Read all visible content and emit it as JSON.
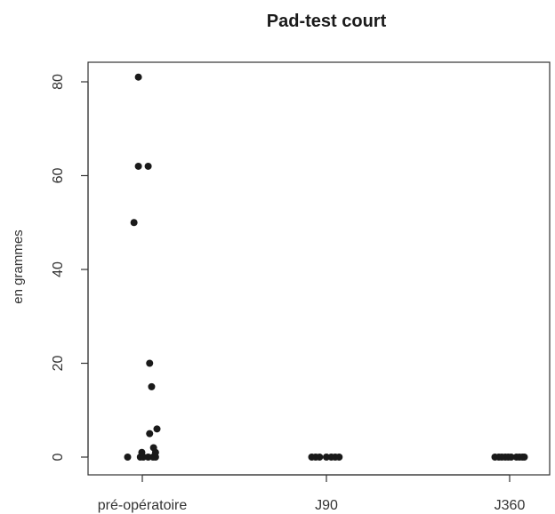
{
  "chart_data": {
    "type": "scatter",
    "title": "Pad-test court",
    "xlabel": "",
    "ylabel": "en grammes",
    "categories": [
      "pré-opératoire",
      "J90",
      "J360"
    ],
    "ylim": [
      0,
      84
    ],
    "yticks": [
      0,
      20,
      40,
      60,
      80
    ],
    "grid": false,
    "points": [
      {
        "category": "pré-opératoire",
        "jitter": -0.3,
        "value": 0
      },
      {
        "category": "pré-opératoire",
        "jitter": -0.17,
        "value": 50
      },
      {
        "category": "pré-opératoire",
        "jitter": -0.08,
        "value": 81
      },
      {
        "category": "pré-opératoire",
        "jitter": -0.08,
        "value": 62
      },
      {
        "category": "pré-opératoire",
        "jitter": 0.12,
        "value": 62
      },
      {
        "category": "pré-opératoire",
        "jitter": -0.04,
        "value": 0
      },
      {
        "category": "pré-opératoire",
        "jitter": -0.01,
        "value": 1
      },
      {
        "category": "pré-opératoire",
        "jitter": 0.02,
        "value": 0
      },
      {
        "category": "pré-opératoire",
        "jitter": 0.12,
        "value": 0
      },
      {
        "category": "pré-opératoire",
        "jitter": 0.15,
        "value": 20
      },
      {
        "category": "pré-opératoire",
        "jitter": 0.19,
        "value": 15
      },
      {
        "category": "pré-opératoire",
        "jitter": 0.15,
        "value": 5
      },
      {
        "category": "pré-opératoire",
        "jitter": 0.22,
        "value": 0
      },
      {
        "category": "pré-opératoire",
        "jitter": 0.23,
        "value": 2
      },
      {
        "category": "pré-opératoire",
        "jitter": 0.27,
        "value": 1
      },
      {
        "category": "pré-opératoire",
        "jitter": 0.3,
        "value": 6
      },
      {
        "category": "pré-opératoire",
        "jitter": 0.27,
        "value": 0
      },
      {
        "category": "J90",
        "jitter": -0.3,
        "value": 0
      },
      {
        "category": "J90",
        "jitter": -0.22,
        "value": 0
      },
      {
        "category": "J90",
        "jitter": -0.14,
        "value": 0
      },
      {
        "category": "J90",
        "jitter": 0.0,
        "value": 0
      },
      {
        "category": "J90",
        "jitter": 0.1,
        "value": 0
      },
      {
        "category": "J90",
        "jitter": 0.18,
        "value": 0
      },
      {
        "category": "J90",
        "jitter": 0.26,
        "value": 0
      },
      {
        "category": "J360",
        "jitter": -0.3,
        "value": 0
      },
      {
        "category": "J360",
        "jitter": -0.22,
        "value": 0
      },
      {
        "category": "J360",
        "jitter": -0.16,
        "value": 0
      },
      {
        "category": "J360",
        "jitter": -0.09,
        "value": 0
      },
      {
        "category": "J360",
        "jitter": -0.03,
        "value": 0
      },
      {
        "category": "J360",
        "jitter": 0.03,
        "value": 0
      },
      {
        "category": "J360",
        "jitter": 0.14,
        "value": 0
      },
      {
        "category": "J360",
        "jitter": 0.2,
        "value": 0
      },
      {
        "category": "J360",
        "jitter": 0.26,
        "value": 0
      },
      {
        "category": "J360",
        "jitter": 0.3,
        "value": 0
      }
    ]
  }
}
